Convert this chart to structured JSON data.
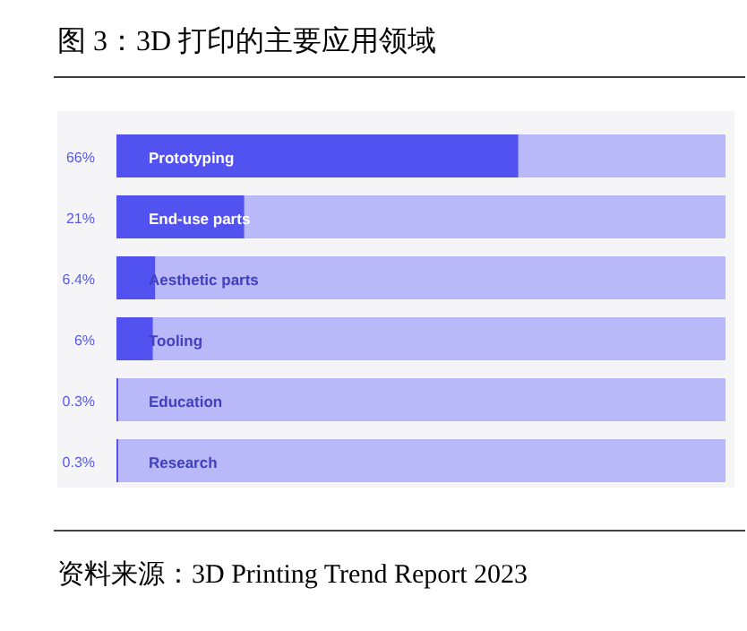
{
  "chart_data": {
    "type": "bar",
    "orientation": "horizontal",
    "stacked": true,
    "title": "图 3：3D 打印的主要应用领域",
    "categories": [
      "Prototyping",
      "End-use parts",
      "Aesthetic parts",
      "Tooling",
      "Education",
      "Research"
    ],
    "series": [
      {
        "color": "#5252f0",
        "values": [
          66,
          21,
          6.4,
          6,
          0.3,
          0.3
        ],
        "value_labels": [
          "66%",
          "21%",
          "6.4%",
          "6%",
          "0.3%",
          "0.3%"
        ]
      },
      {
        "color": "#b9b9fa",
        "values": [
          34,
          79,
          93.6,
          94,
          99.7,
          99.7
        ]
      }
    ],
    "xlim": [
      0,
      100
    ],
    "annotations": [
      "资料来源：3D Printing Trend Report 2023"
    ]
  }
}
